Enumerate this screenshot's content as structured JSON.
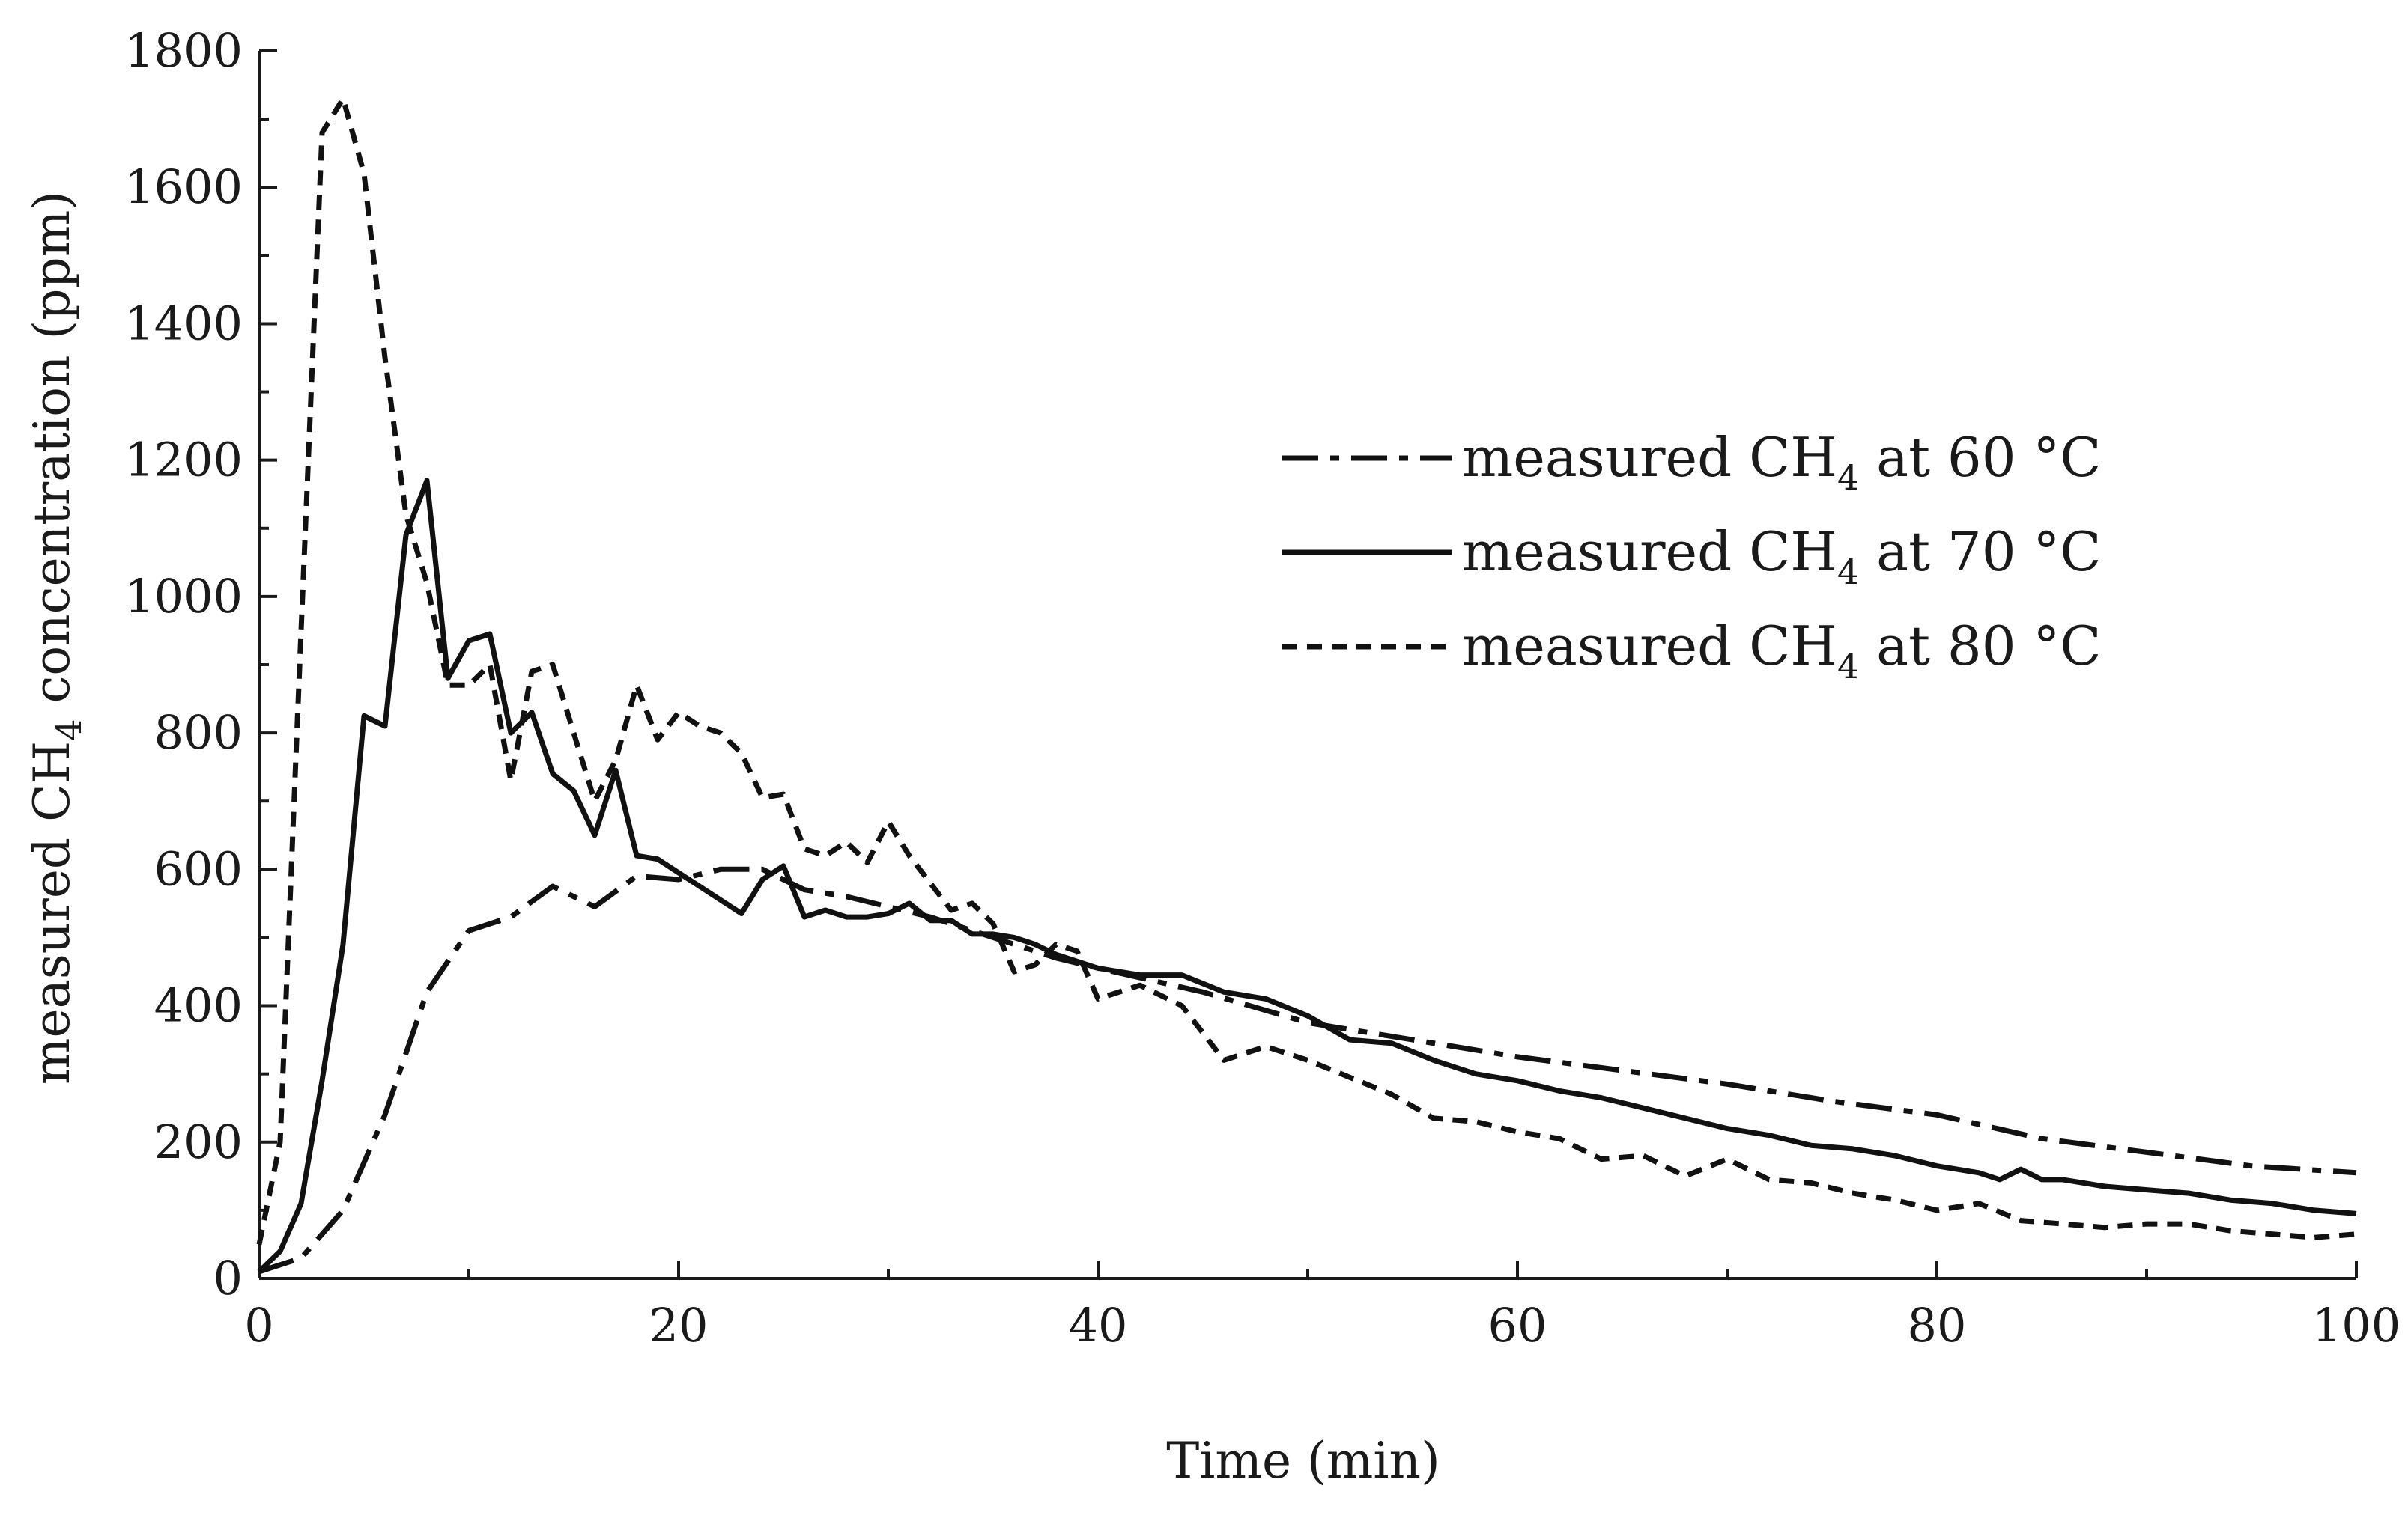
{
  "chart_data": {
    "type": "line",
    "title": "",
    "xlabel": "Time (min)",
    "ylabel": {
      "main": "measured CH",
      "sub": "4",
      "rest": " concentration (ppm)"
    },
    "xlim": [
      0,
      100
    ],
    "ylim": [
      0,
      1800
    ],
    "xticks": [
      0,
      20,
      40,
      60,
      80,
      100
    ],
    "yticks": [
      0,
      200,
      400,
      600,
      800,
      1000,
      1200,
      1400,
      1600,
      1800
    ],
    "grid": false,
    "legend_position": "upper-right",
    "series": [
      {
        "name": "measured CH4 at 60 °C",
        "label": {
          "main": "measured CH",
          "sub": "4",
          "rest": " at 60 °C"
        },
        "style": "dashdot",
        "x": [
          0,
          2,
          4,
          6,
          8,
          10,
          12,
          14,
          16,
          18,
          20,
          22,
          24,
          26,
          28,
          30,
          32,
          34,
          36,
          38,
          40,
          45,
          50,
          55,
          60,
          65,
          70,
          75,
          80,
          85,
          90,
          95,
          100
        ],
        "y": [
          10,
          30,
          100,
          240,
          420,
          510,
          530,
          575,
          545,
          590,
          585,
          600,
          600,
          570,
          560,
          545,
          530,
          510,
          490,
          470,
          455,
          420,
          375,
          350,
          325,
          305,
          285,
          260,
          240,
          205,
          185,
          165,
          155
        ]
      },
      {
        "name": "measured CH4 at 70 °C",
        "label": {
          "main": "measured CH",
          "sub": "4",
          "rest": " at 70 °C"
        },
        "style": "solid",
        "x": [
          0,
          1,
          2,
          3,
          4,
          5,
          6,
          7,
          8,
          9,
          10,
          11,
          12,
          13,
          14,
          15,
          16,
          17,
          18,
          19,
          20,
          21,
          22,
          23,
          24,
          25,
          26,
          27,
          28,
          29,
          30,
          31,
          32,
          33,
          34,
          35,
          36,
          37,
          38,
          39,
          40,
          42,
          44,
          46,
          48,
          50,
          52,
          54,
          56,
          58,
          60,
          62,
          64,
          66,
          68,
          70,
          72,
          74,
          76,
          78,
          80,
          82,
          83,
          84,
          85,
          86,
          88,
          90,
          92,
          94,
          96,
          98,
          100
        ],
        "y": [
          10,
          40,
          110,
          290,
          490,
          825,
          810,
          1090,
          1170,
          880,
          935,
          945,
          800,
          830,
          740,
          715,
          650,
          745,
          620,
          615,
          595,
          575,
          555,
          535,
          585,
          605,
          530,
          540,
          530,
          530,
          535,
          550,
          525,
          525,
          505,
          505,
          500,
          490,
          475,
          465,
          455,
          445,
          445,
          420,
          410,
          385,
          350,
          345,
          320,
          300,
          290,
          275,
          265,
          250,
          235,
          220,
          210,
          195,
          190,
          180,
          165,
          155,
          145,
          160,
          145,
          145,
          135,
          130,
          125,
          115,
          110,
          100,
          95
        ]
      },
      {
        "name": "measured CH4 at 80 °C",
        "label": {
          "main": "measured CH",
          "sub": "4",
          "rest": " at 80 °C"
        },
        "style": "dashed",
        "x": [
          0,
          1,
          2,
          3,
          4,
          5,
          6,
          7,
          8,
          9,
          10,
          11,
          12,
          13,
          14,
          15,
          16,
          17,
          18,
          19,
          20,
          21,
          22,
          23,
          24,
          25,
          26,
          27,
          28,
          29,
          30,
          31,
          32,
          33,
          34,
          35,
          36,
          37,
          38,
          39,
          40,
          42,
          44,
          46,
          48,
          50,
          52,
          54,
          56,
          58,
          60,
          62,
          64,
          66,
          68,
          70,
          72,
          74,
          76,
          78,
          80,
          82,
          84,
          86,
          88,
          90,
          92,
          94,
          96,
          98,
          100
        ],
        "y": [
          50,
          200,
          950,
          1680,
          1730,
          1620,
          1350,
          1120,
          1020,
          870,
          870,
          900,
          730,
          890,
          900,
          800,
          700,
          760,
          870,
          790,
          830,
          810,
          800,
          770,
          705,
          710,
          630,
          620,
          640,
          610,
          670,
          620,
          580,
          540,
          550,
          520,
          450,
          460,
          490,
          480,
          410,
          430,
          400,
          320,
          340,
          320,
          295,
          270,
          235,
          230,
          215,
          205,
          175,
          180,
          150,
          175,
          145,
          140,
          125,
          115,
          100,
          110,
          85,
          80,
          75,
          80,
          80,
          70,
          65,
          60,
          65
        ]
      }
    ]
  }
}
